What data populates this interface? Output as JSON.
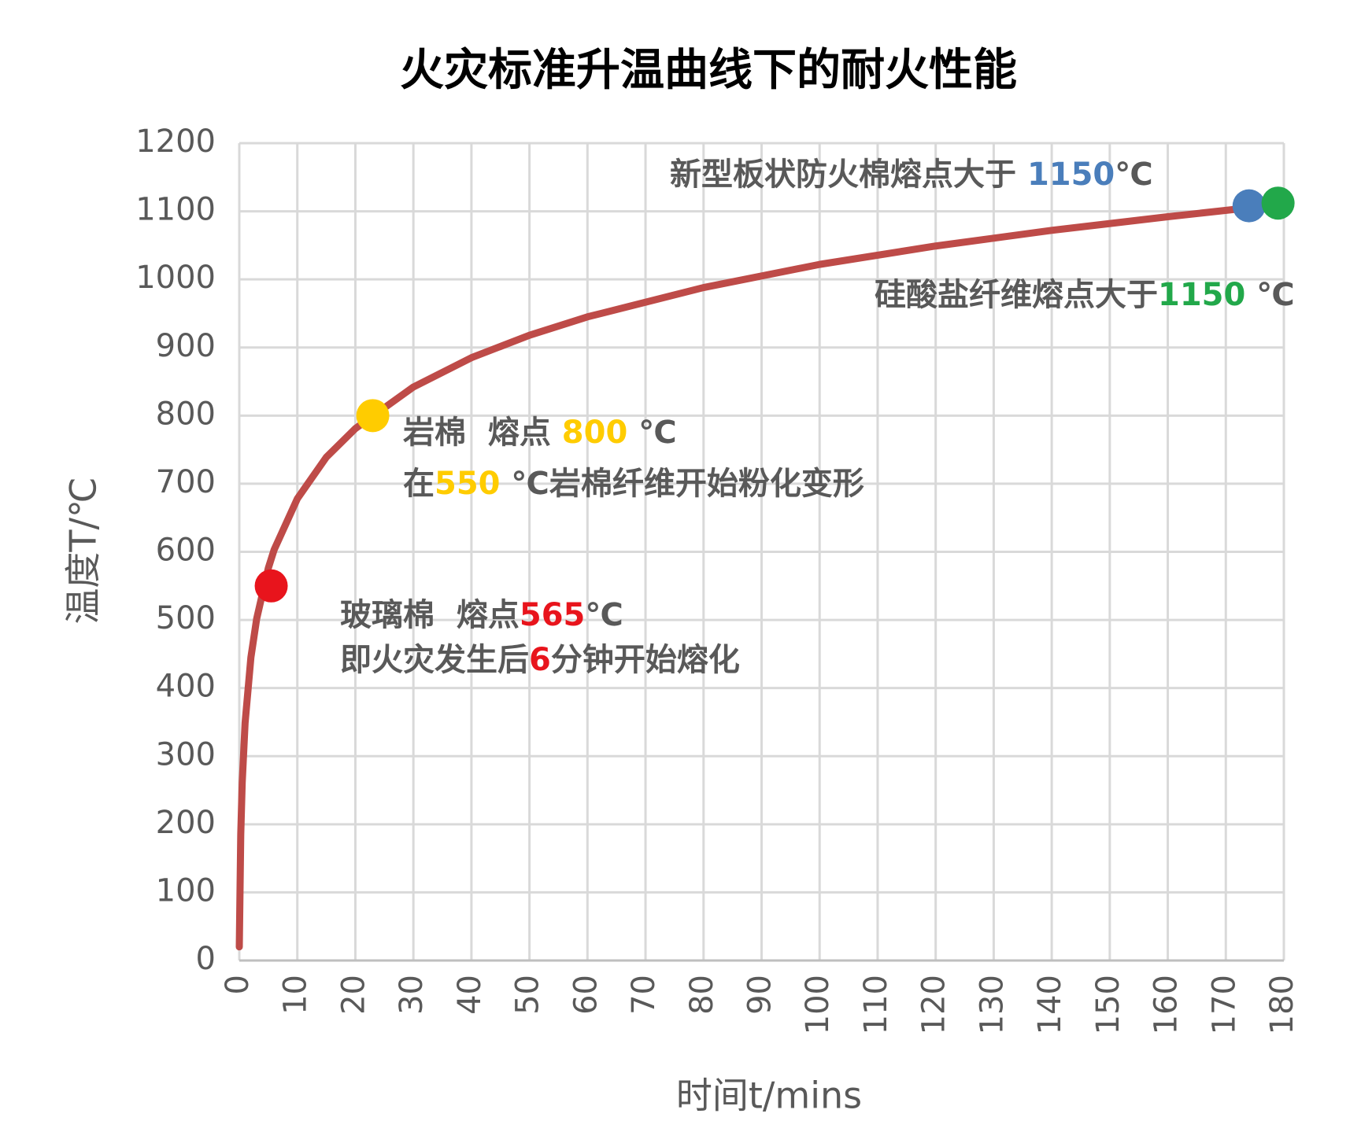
{
  "chart_data": {
    "type": "line",
    "title": "火灾标准升温曲线下的耐火性能",
    "x_label": "时间t/mins",
    "y_label": "温度T/℃",
    "xlim": [
      0,
      180
    ],
    "ylim": [
      0,
      1200
    ],
    "xticks": [
      0,
      10,
      20,
      30,
      40,
      50,
      60,
      70,
      80,
      90,
      100,
      110,
      120,
      130,
      140,
      150,
      160,
      170,
      180
    ],
    "yticks": [
      0,
      100,
      200,
      300,
      400,
      500,
      600,
      700,
      800,
      900,
      1000,
      1100,
      1200
    ],
    "grid": true,
    "series": [
      {
        "color": "#be4b48",
        "x": [
          0,
          0.25,
          0.5,
          1,
          2,
          3,
          5,
          6,
          10,
          15,
          20,
          30,
          40,
          50,
          60,
          80,
          100,
          120,
          140,
          160,
          175
        ],
        "values": [
          20,
          185,
          261,
          349,
          445,
          502,
          576,
          603,
          678,
          739,
          781,
          842,
          885,
          918,
          945,
          988,
          1022,
          1049,
          1072,
          1092,
          1106
        ]
      }
    ],
    "points": [
      {
        "x": 5.5,
        "y": 550,
        "color": "#e8141c"
      },
      {
        "x": 23,
        "y": 800,
        "color": "#ffcc00"
      },
      {
        "x": 174,
        "y": 1108,
        "color": "#4a7ebb"
      },
      {
        "x": 179,
        "y": 1112,
        "color": "#22a84a"
      }
    ],
    "annotations": [
      {
        "lines": [
          [
            {
              "text": "新型板状防火棉熔点大于 ",
              "color": "#595959"
            },
            {
              "text": "1150",
              "color": "#4a7ebb"
            },
            {
              "text": "℃",
              "color": "#595959"
            }
          ]
        ]
      },
      {
        "lines": [
          [
            {
              "text": "硅酸盐纤维熔点大于",
              "color": "#595959"
            },
            {
              "text": "1150",
              "color": "#22a84a"
            },
            {
              "text": " ℃",
              "color": "#595959"
            }
          ]
        ]
      },
      {
        "lines": [
          [
            {
              "text": "岩棉  熔点 ",
              "color": "#595959"
            },
            {
              "text": "800",
              "color": "#ffcc00"
            },
            {
              "text": " ℃",
              "color": "#595959"
            }
          ],
          [
            {
              "text": "在",
              "color": "#595959"
            },
            {
              "text": "550",
              "color": "#ffcc00"
            },
            {
              "text": " ℃岩棉纤维开始粉化变形",
              "color": "#595959"
            }
          ]
        ]
      },
      {
        "lines": [
          [
            {
              "text": "玻璃棉  熔点",
              "color": "#595959"
            },
            {
              "text": "565",
              "color": "#e8141c"
            },
            {
              "text": "℃",
              "color": "#595959"
            }
          ],
          [
            {
              "text": "即火灾发生后",
              "color": "#595959"
            },
            {
              "text": "6",
              "color": "#e8141c"
            },
            {
              "text": "分钟开始熔化",
              "color": "#595959"
            }
          ]
        ]
      }
    ]
  }
}
